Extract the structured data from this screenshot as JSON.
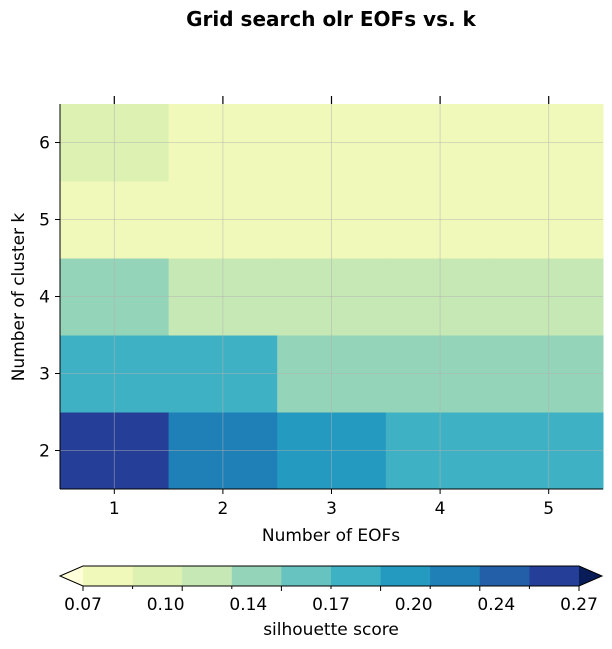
{
  "chart_data": {
    "type": "heatmap",
    "title": "Grid search olr EOFs vs. k",
    "xlabel": "Number of EOFs",
    "ylabel": "Number of cluster k",
    "x": [
      1,
      2,
      3,
      4,
      5
    ],
    "y": [
      2,
      3,
      4,
      5,
      6
    ],
    "xlim": [
      0.5,
      5.5
    ],
    "ylim": [
      1.5,
      6.5
    ],
    "grid": true,
    "values": [
      [
        0.265,
        0.225,
        0.2,
        0.185,
        0.185
      ],
      [
        0.18,
        0.18,
        0.15,
        0.135,
        0.135
      ],
      [
        0.135,
        0.12,
        0.12,
        0.12,
        0.12
      ],
      [
        0.075,
        0.075,
        0.075,
        0.075,
        0.075
      ],
      [
        0.095,
        0.075,
        0.075,
        0.075,
        0.075
      ]
    ],
    "colorbar": {
      "label": "silhouette score",
      "min": 0.07,
      "max": 0.27,
      "ticks": [
        "0.07",
        "0.10",
        "0.14",
        "0.17",
        "0.20",
        "0.24",
        "0.27"
      ],
      "extend": "both",
      "colors": [
        "#ffffd9",
        "#f1f9ba",
        "#ddf2b2",
        "#c6e8b4",
        "#94d4b9",
        "#67c3bf",
        "#3eb2c4",
        "#259ac1",
        "#1f7fb7",
        "#225fa8",
        "#253f99",
        "#081d58"
      ]
    }
  }
}
